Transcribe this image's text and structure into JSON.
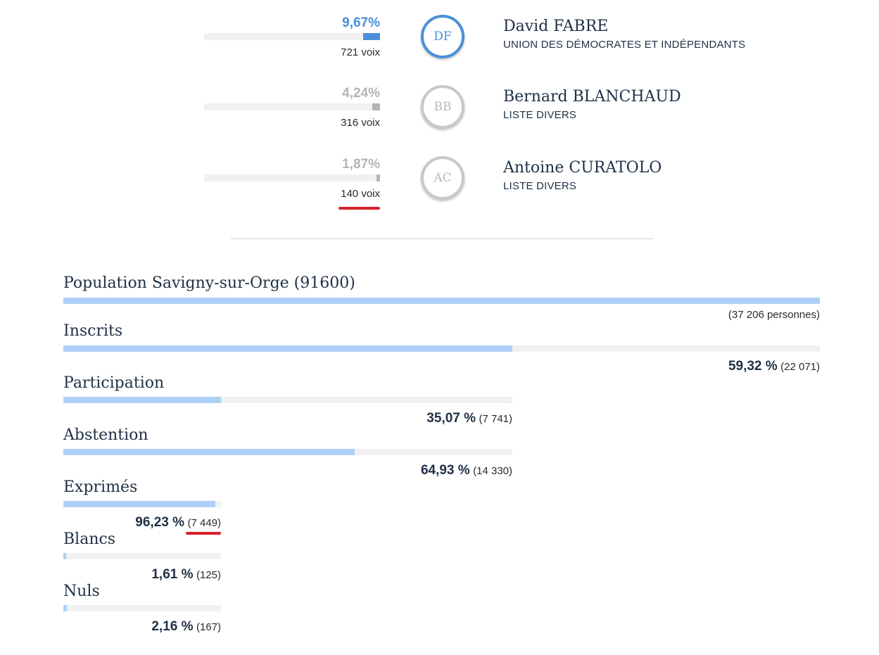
{
  "candidates": [
    {
      "initials": "DF",
      "name": "David FABRE",
      "party": "UNION DES DÉMOCRATES ET INDÉPENDANTS",
      "percent": "9,67%",
      "votes": "721 voix",
      "share": 9.67,
      "color": "#4a90d9"
    },
    {
      "initials": "BB",
      "name": "Bernard BLANCHAUD",
      "party": "LISTE DIVERS",
      "percent": "4,24%",
      "votes": "316 voix",
      "share": 4.24,
      "color": "#b5b5b5"
    },
    {
      "initials": "AC",
      "name": "Antoine CURATOLO",
      "party": "LISTE DIVERS",
      "percent": "1,87%",
      "votes": "140 voix",
      "share": 1.87,
      "color": "#b5b5b5"
    }
  ],
  "stats": {
    "population": {
      "label": "Population Savigny-sur-Orge (91600)",
      "count": "(37 206 personnes)",
      "share": 100
    },
    "inscrits": {
      "label": "Inscrits",
      "percent": "59,32 %",
      "count": "(22 071)",
      "share": 59.32
    },
    "participation": {
      "label": "Participation",
      "percent": "35,07 %",
      "count": "(7 741)",
      "share": 35.07
    },
    "abstention": {
      "label": "Abstention",
      "percent": "64,93 %",
      "count": "(14 330)",
      "share": 64.93
    },
    "exprimes": {
      "label": "Exprimés",
      "percent": "96,23 %",
      "count": "(7 449)",
      "share": 96.23
    },
    "blancs": {
      "label": "Blancs",
      "percent": "1,61 %",
      "count": "(125)",
      "share": 1.61
    },
    "nuls": {
      "label": "Nuls",
      "percent": "2,16 %",
      "count": "(167)",
      "share": 2.16
    }
  },
  "colors": {
    "accent": "#4a90d9",
    "bar": "#afd0f6",
    "track": "#f1f1f1",
    "highlight": "#d9202a",
    "text": "#1f3046"
  }
}
